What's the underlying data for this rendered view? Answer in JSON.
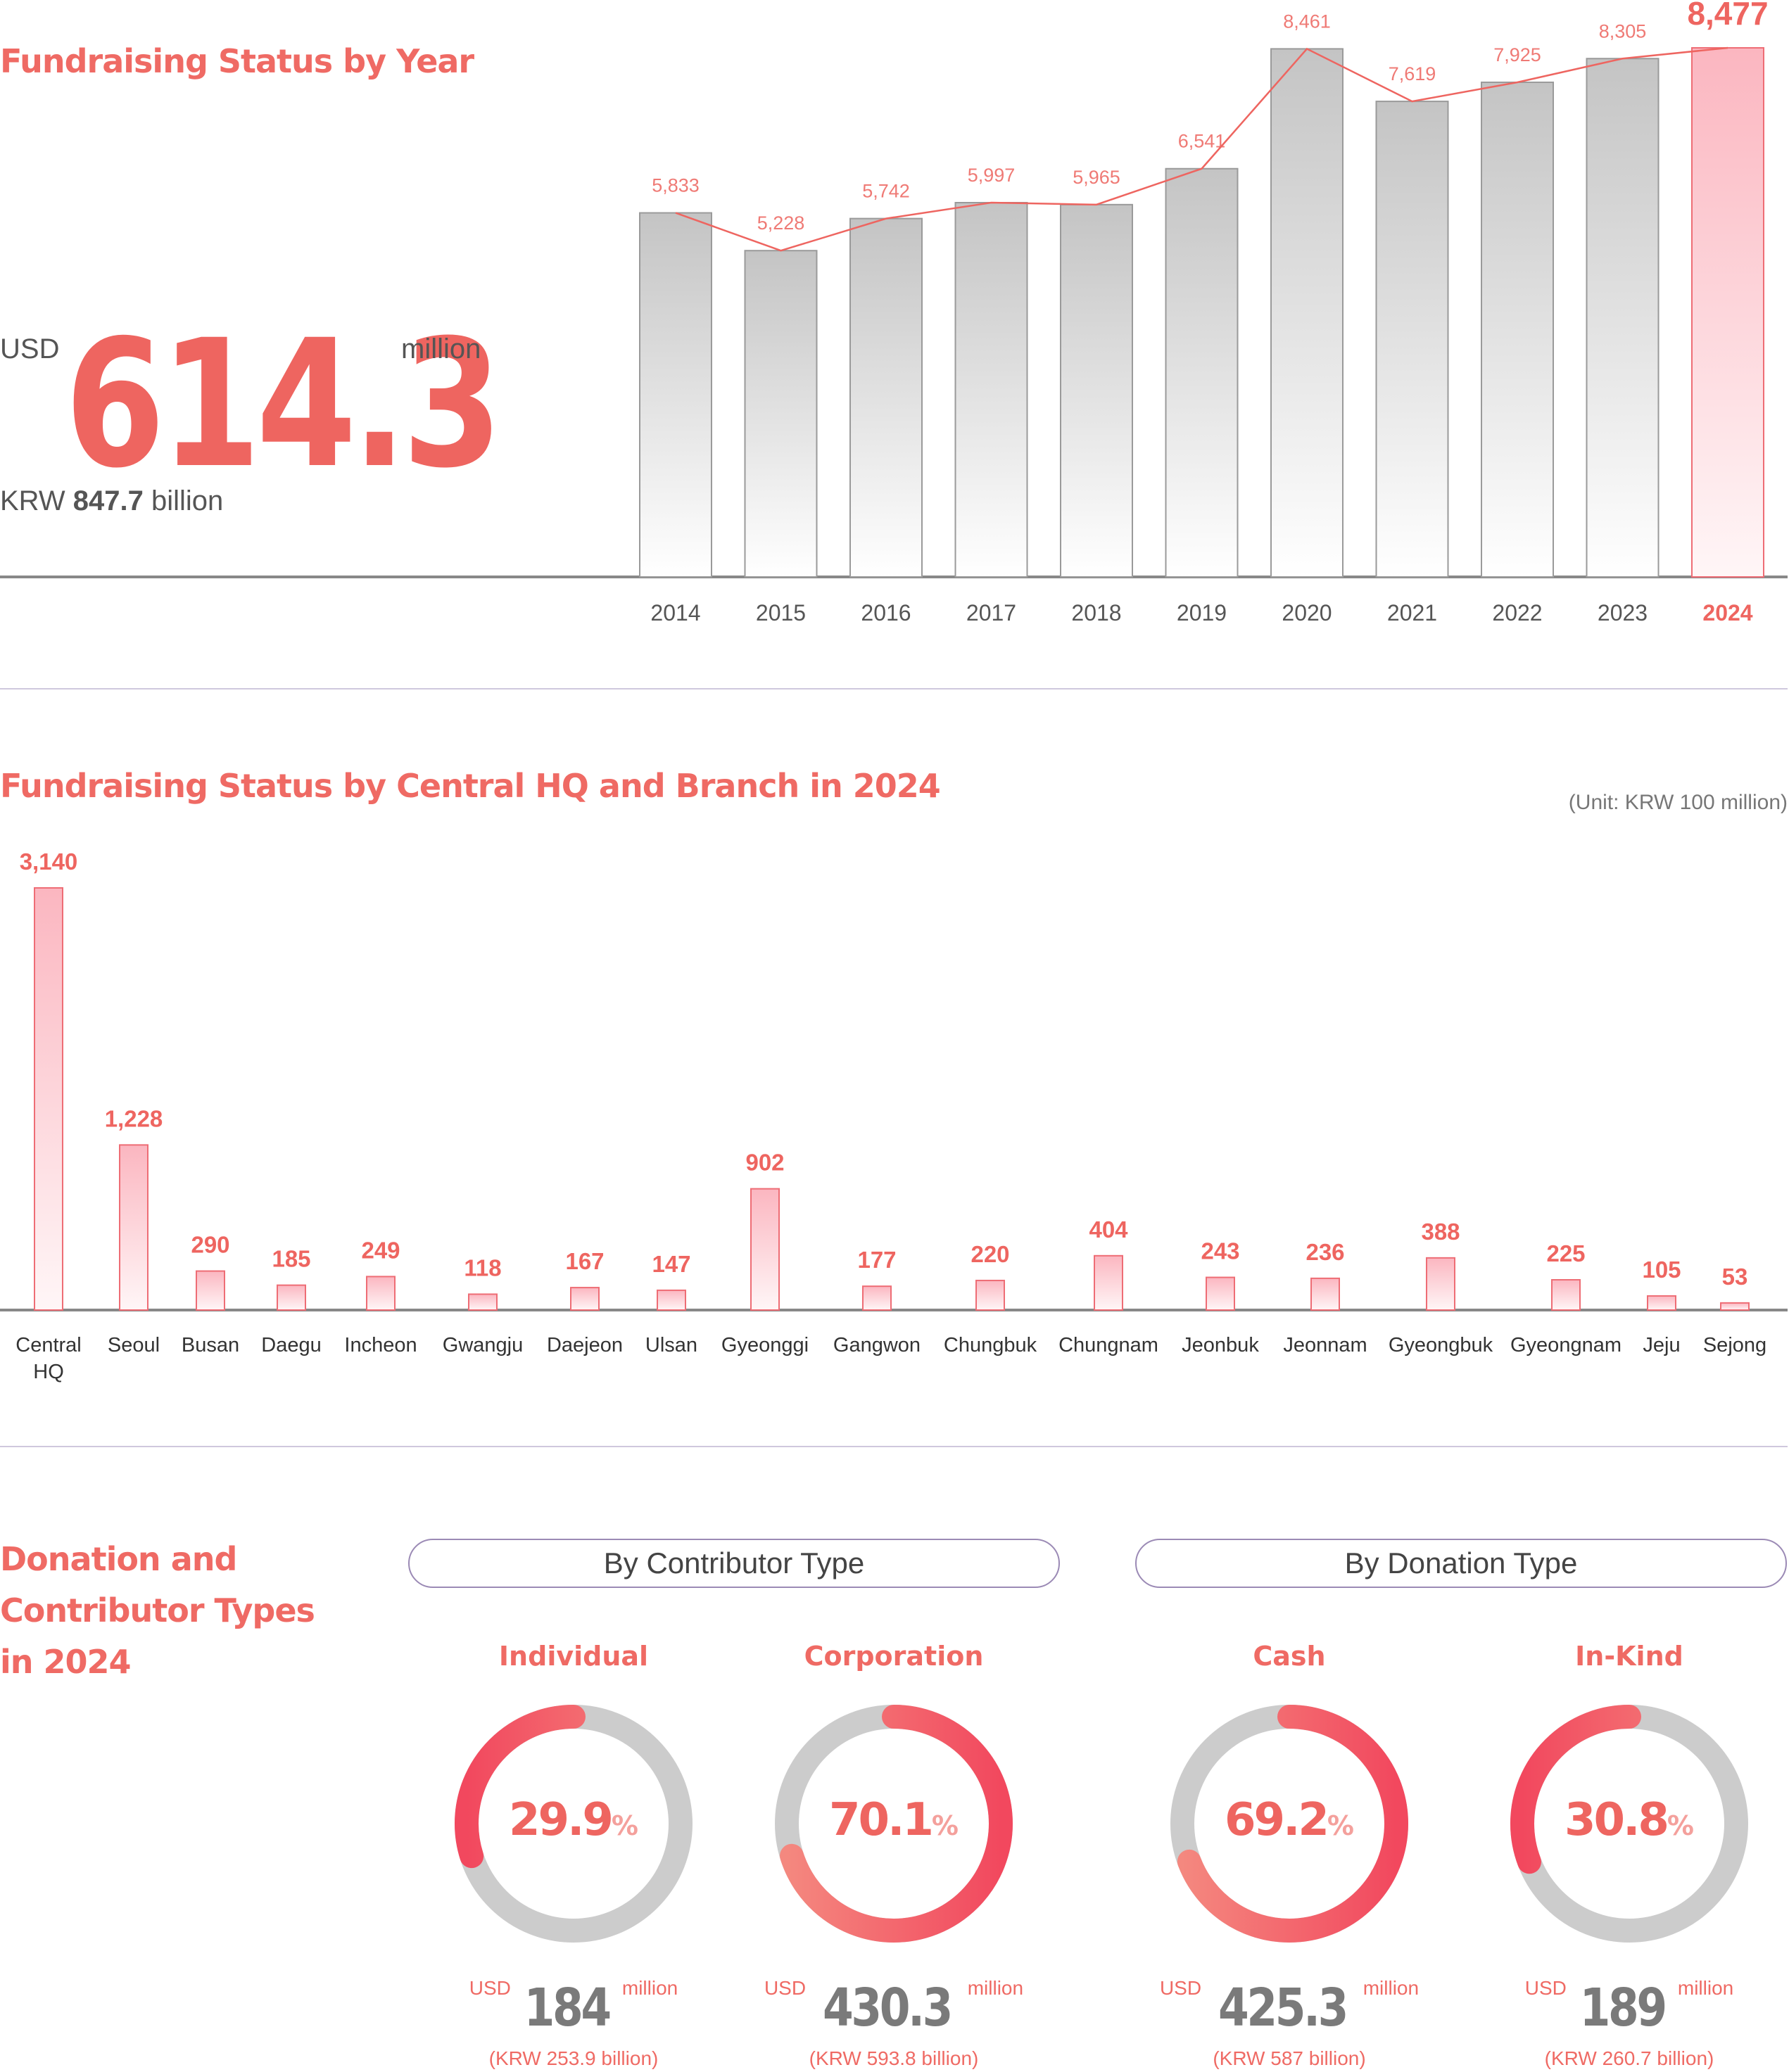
{
  "section1": {
    "title": "Fundraising Status by Year",
    "usd_prefix": "USD",
    "usd_value": "614.3",
    "usd_unit": "million",
    "krw_prefix": "KRW",
    "krw_value": "847.7",
    "krw_unit": "billion"
  },
  "section2": {
    "title": "Fundraising Status by Central HQ and Branch in 2024",
    "unit": "(Unit: KRW 100 million)"
  },
  "section3": {
    "title_line1": "Donation and",
    "title_line2": "Contributor Types",
    "title_line3": "in 2024",
    "pill_contributor": "By Contributor Type",
    "pill_donation": "By Donation Type",
    "donuts": [
      {
        "title": "Individual",
        "percent": 29.9,
        "percent_label": "29.9",
        "pct_sign": "%",
        "usd": "USD",
        "amount": "184",
        "million": "million",
        "krw": "(KRW 253.9 billion)"
      },
      {
        "title": "Corporation",
        "percent": 70.1,
        "percent_label": "70.1",
        "pct_sign": "%",
        "usd": "USD",
        "amount": "430.3",
        "million": "million",
        "krw": "(KRW 593.8 billion)"
      },
      {
        "title": "Cash",
        "percent": 69.2,
        "percent_label": "69.2",
        "pct_sign": "%",
        "usd": "USD",
        "amount": "425.3",
        "million": "million",
        "krw": "(KRW 587 billion)"
      },
      {
        "title": "In-Kind",
        "percent": 30.8,
        "percent_label": "30.8",
        "pct_sign": "%",
        "usd": "USD",
        "amount": "189",
        "million": "million",
        "krw": "(KRW 260.7 billion)"
      }
    ]
  },
  "colors": {
    "accent": "#ee6560",
    "bar_gray_top": "#c4c4c4",
    "bar_pink_top": "#fbb9c2",
    "donut_track": "#cccccc",
    "divider": "#cfc8dd"
  },
  "chart_data": [
    {
      "type": "bar",
      "title": "Fundraising Status by Year",
      "categories": [
        "2014",
        "2015",
        "2016",
        "2017",
        "2018",
        "2019",
        "2020",
        "2021",
        "2022",
        "2023",
        "2024"
      ],
      "values": [
        5833,
        5228,
        5742,
        5997,
        5965,
        6541,
        8461,
        7619,
        7925,
        8305,
        8477
      ],
      "labels": [
        "5,833",
        "5,228",
        "5,742",
        "5,997",
        "5,965",
        "6,541",
        "8,461",
        "7,619",
        "7,925",
        "8,305",
        "8,477"
      ],
      "highlight": "2024",
      "line_overlay": true,
      "ylim": [
        0,
        8477
      ]
    },
    {
      "type": "bar",
      "title": "Fundraising Status by Central HQ and Branch in 2024",
      "unit": "(Unit: KRW 100 million)",
      "categories": [
        "Central HQ",
        "Seoul",
        "Busan",
        "Daegu",
        "Incheon",
        "Gwangju",
        "Daejeon",
        "Ulsan",
        "Gyeonggi",
        "Gangwon",
        "Chungbuk",
        "Chungnam",
        "Jeonbuk",
        "Jeonnam",
        "Gyeongbuk",
        "Gyeongnam",
        "Jeju",
        "Sejong"
      ],
      "category_lines": [
        [
          "Central",
          "HQ"
        ],
        [
          "Seoul"
        ],
        [
          "Busan"
        ],
        [
          "Daegu"
        ],
        [
          "Incheon"
        ],
        [
          "Gwangju"
        ],
        [
          "Daejeon"
        ],
        [
          "Ulsan"
        ],
        [
          "Gyeonggi"
        ],
        [
          "Gangwon"
        ],
        [
          "Chungbuk"
        ],
        [
          "Chungnam"
        ],
        [
          "Jeonbuk"
        ],
        [
          "Jeonnam"
        ],
        [
          "Gyeongbuk"
        ],
        [
          "Gyeongnam"
        ],
        [
          "Jeju"
        ],
        [
          "Sejong"
        ]
      ],
      "values": [
        3140,
        1228,
        290,
        185,
        249,
        118,
        167,
        147,
        902,
        177,
        220,
        404,
        243,
        236,
        388,
        225,
        105,
        53
      ],
      "labels": [
        "3,140",
        "1,228",
        "290",
        "185",
        "249",
        "118",
        "167",
        "147",
        "902",
        "177",
        "220",
        "404",
        "243",
        "236",
        "388",
        "225",
        "105",
        "53"
      ],
      "ylim": [
        0,
        3140
      ]
    },
    {
      "type": "pie",
      "title": "By Contributor Type",
      "categories": [
        "Individual",
        "Corporation"
      ],
      "values": [
        29.9,
        70.1
      ]
    },
    {
      "type": "pie",
      "title": "By Donation Type",
      "categories": [
        "Cash",
        "In-Kind"
      ],
      "values": [
        69.2,
        30.8
      ]
    }
  ]
}
